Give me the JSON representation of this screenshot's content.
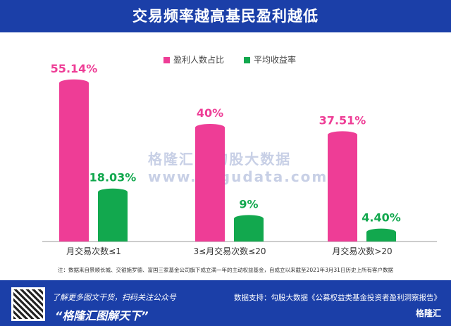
{
  "header": {
    "title": "交易频率越高基民盈利越低"
  },
  "watermark": "格隆汇 | 勾股大数据 www.gogudata.com",
  "note": "注：数据来自景顺长城、交银施罗德、富国三家基金公司旗下成立满一年的主动权益基金，自成立以来截至2021年3月31日历史上所有客户数据",
  "footer": {
    "line1": "了解更多图文干货，扫码关注公众号",
    "slogan": "“格隆汇图解天下”",
    "source": "数据支持：勾股大数据《公募权益类基金投资者盈利洞察报告》",
    "logo": "格隆汇"
  },
  "chart_data": {
    "type": "bar",
    "title": "交易频率越高基民盈利越低",
    "categories": [
      "月交易次数≤1",
      "3≤月交易次数≤20",
      "月交易次数>20"
    ],
    "series": [
      {
        "name": "盈利人数占比",
        "color": "#ee3d96",
        "values": [
          55.14,
          40,
          37.51
        ],
        "labels": [
          "55.14%",
          "40%",
          "37.51%"
        ]
      },
      {
        "name": "平均收益率",
        "color": "#12a84e",
        "values": [
          18.03,
          9,
          4.4
        ],
        "labels": [
          "18.03%",
          "9%",
          "4.40%"
        ]
      }
    ],
    "ylim": [
      0,
      57
    ],
    "grid": false,
    "legend": "top-center"
  }
}
